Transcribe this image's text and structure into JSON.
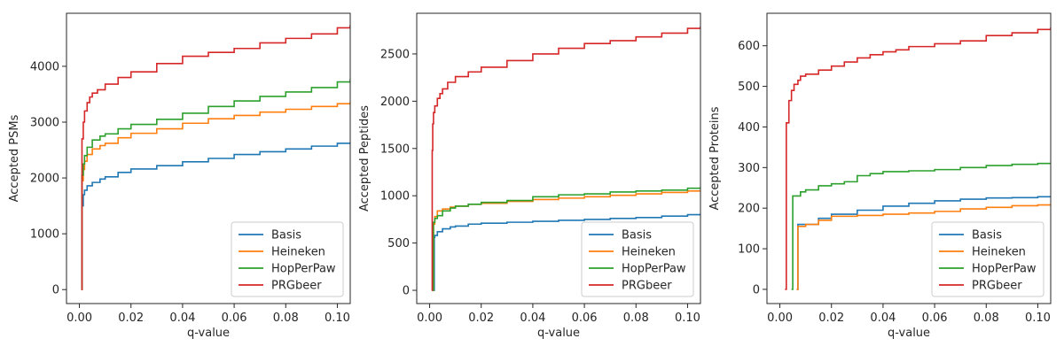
{
  "chart_data": [
    {
      "type": "line",
      "xlabel": "q-value",
      "ylabel": "Accepted PSMs",
      "xlim": [
        -0.005,
        0.105
      ],
      "ylim": [
        -250,
        4950
      ],
      "x_ticks": [
        0.0,
        0.02,
        0.04,
        0.06,
        0.08,
        0.1
      ],
      "x_tick_labels": [
        "0.00",
        "0.02",
        "0.04",
        "0.06",
        "0.08",
        "0.10"
      ],
      "y_ticks": [
        0,
        1000,
        2000,
        3000,
        4000
      ],
      "y_tick_labels": [
        "0",
        "1000",
        "2000",
        "3000",
        "4000"
      ],
      "legend_position": "lower-right",
      "series": [
        {
          "name": "Basis",
          "color": "#1f77b4",
          "x": [
            0.0008,
            0.001,
            0.0015,
            0.002,
            0.003,
            0.005,
            0.008,
            0.01,
            0.015,
            0.02,
            0.03,
            0.04,
            0.05,
            0.06,
            0.07,
            0.08,
            0.09,
            0.1,
            0.105
          ],
          "y": [
            0,
            1500,
            1700,
            1780,
            1860,
            1920,
            1980,
            2020,
            2100,
            2160,
            2220,
            2290,
            2350,
            2420,
            2470,
            2520,
            2570,
            2620,
            2640
          ]
        },
        {
          "name": "Heineken",
          "color": "#ff7f0e",
          "x": [
            0.0008,
            0.001,
            0.0015,
            0.002,
            0.003,
            0.005,
            0.008,
            0.01,
            0.015,
            0.02,
            0.03,
            0.04,
            0.05,
            0.06,
            0.07,
            0.08,
            0.09,
            0.1,
            0.105
          ],
          "y": [
            0,
            1950,
            2150,
            2300,
            2420,
            2520,
            2580,
            2620,
            2720,
            2800,
            2880,
            2980,
            3060,
            3120,
            3180,
            3230,
            3280,
            3330,
            3360
          ]
        },
        {
          "name": "HopPerPaw",
          "color": "#2ca02c",
          "x": [
            0.0008,
            0.001,
            0.0015,
            0.002,
            0.003,
            0.005,
            0.008,
            0.01,
            0.015,
            0.02,
            0.03,
            0.04,
            0.05,
            0.06,
            0.07,
            0.08,
            0.09,
            0.1,
            0.105
          ],
          "y": [
            0,
            2050,
            2250,
            2400,
            2550,
            2680,
            2750,
            2790,
            2880,
            2960,
            3050,
            3160,
            3280,
            3380,
            3460,
            3540,
            3620,
            3720,
            3770
          ]
        },
        {
          "name": "PRGbeer",
          "color": "#d62728",
          "x": [
            0.0008,
            0.001,
            0.0015,
            0.002,
            0.003,
            0.004,
            0.005,
            0.007,
            0.01,
            0.015,
            0.02,
            0.03,
            0.04,
            0.05,
            0.06,
            0.07,
            0.08,
            0.09,
            0.1,
            0.105
          ],
          "y": [
            0,
            2700,
            3000,
            3200,
            3350,
            3450,
            3520,
            3580,
            3680,
            3800,
            3900,
            4050,
            4180,
            4250,
            4320,
            4420,
            4500,
            4580,
            4690,
            4740
          ]
        }
      ]
    },
    {
      "type": "line",
      "xlabel": "q-value",
      "ylabel": "Accepted Peptides",
      "xlim": [
        -0.005,
        0.105
      ],
      "ylim": [
        -140,
        2930
      ],
      "x_ticks": [
        0.0,
        0.02,
        0.04,
        0.06,
        0.08,
        0.1
      ],
      "x_tick_labels": [
        "0.00",
        "0.02",
        "0.04",
        "0.06",
        "0.08",
        "0.10"
      ],
      "y_ticks": [
        0,
        500,
        1000,
        1500,
        2000,
        2500
      ],
      "y_tick_labels": [
        "0",
        "500",
        "1000",
        "1500",
        "2000",
        "2500"
      ],
      "legend_position": "lower-right",
      "series": [
        {
          "name": "Basis",
          "color": "#1f77b4",
          "x": [
            0.0015,
            0.0018,
            0.002,
            0.003,
            0.005,
            0.008,
            0.01,
            0.015,
            0.02,
            0.03,
            0.04,
            0.05,
            0.06,
            0.07,
            0.08,
            0.09,
            0.1,
            0.105
          ],
          "y": [
            0,
            560,
            580,
            620,
            650,
            670,
            680,
            700,
            710,
            720,
            730,
            740,
            750,
            760,
            770,
            785,
            800,
            810
          ]
        },
        {
          "name": "Heineken",
          "color": "#ff7f0e",
          "x": [
            0.0012,
            0.0015,
            0.002,
            0.003,
            0.005,
            0.008,
            0.01,
            0.015,
            0.02,
            0.03,
            0.04,
            0.05,
            0.06,
            0.07,
            0.08,
            0.09,
            0.1,
            0.105
          ],
          "y": [
            0,
            700,
            780,
            840,
            860,
            880,
            890,
            910,
            920,
            940,
            960,
            975,
            990,
            1005,
            1020,
            1035,
            1050,
            1060
          ]
        },
        {
          "name": "HopPerPaw",
          "color": "#2ca02c",
          "x": [
            0.0012,
            0.0015,
            0.002,
            0.003,
            0.005,
            0.008,
            0.01,
            0.015,
            0.02,
            0.03,
            0.04,
            0.05,
            0.06,
            0.07,
            0.08,
            0.09,
            0.1,
            0.105
          ],
          "y": [
            0,
            720,
            760,
            790,
            840,
            870,
            890,
            910,
            930,
            950,
            990,
            1010,
            1020,
            1040,
            1050,
            1060,
            1080,
            1090
          ]
        },
        {
          "name": "PRGbeer",
          "color": "#d62728",
          "x": [
            0.0008,
            0.001,
            0.0012,
            0.0015,
            0.002,
            0.003,
            0.004,
            0.005,
            0.007,
            0.01,
            0.015,
            0.02,
            0.03,
            0.04,
            0.05,
            0.06,
            0.07,
            0.08,
            0.09,
            0.1,
            0.105
          ],
          "y": [
            0,
            1480,
            1760,
            1880,
            1950,
            2030,
            2080,
            2130,
            2200,
            2260,
            2310,
            2360,
            2430,
            2500,
            2560,
            2610,
            2640,
            2680,
            2720,
            2770,
            2790
          ]
        }
      ]
    },
    {
      "type": "line",
      "xlabel": "q-value",
      "ylabel": "Accepted Proteins",
      "xlim": [
        -0.005,
        0.105
      ],
      "ylim": [
        -35,
        680
      ],
      "x_ticks": [
        0.0,
        0.02,
        0.04,
        0.06,
        0.08,
        0.1
      ],
      "x_tick_labels": [
        "0.00",
        "0.02",
        "0.04",
        "0.06",
        "0.08",
        "0.10"
      ],
      "y_ticks": [
        0,
        100,
        200,
        300,
        400,
        500,
        600
      ],
      "y_tick_labels": [
        "0",
        "100",
        "200",
        "300",
        "400",
        "500",
        "600"
      ],
      "legend_position": "lower-right",
      "series": [
        {
          "name": "Basis",
          "color": "#1f77b4",
          "x": [
            0.0065,
            0.007,
            0.01,
            0.015,
            0.02,
            0.03,
            0.04,
            0.05,
            0.06,
            0.07,
            0.08,
            0.09,
            0.1,
            0.105
          ],
          "y": [
            0,
            160,
            160,
            175,
            185,
            195,
            205,
            212,
            218,
            222,
            225,
            226,
            228,
            228
          ]
        },
        {
          "name": "Heineken",
          "color": "#ff7f0e",
          "x": [
            0.0065,
            0.007,
            0.01,
            0.015,
            0.02,
            0.03,
            0.04,
            0.05,
            0.06,
            0.07,
            0.08,
            0.09,
            0.1,
            0.105
          ],
          "y": [
            0,
            155,
            160,
            170,
            180,
            182,
            185,
            188,
            192,
            198,
            202,
            206,
            208,
            210
          ]
        },
        {
          "name": "HopPerPaw",
          "color": "#2ca02c",
          "x": [
            0.0045,
            0.005,
            0.008,
            0.01,
            0.015,
            0.02,
            0.025,
            0.03,
            0.035,
            0.04,
            0.05,
            0.06,
            0.07,
            0.08,
            0.09,
            0.1,
            0.105
          ],
          "y": [
            0,
            230,
            240,
            245,
            255,
            260,
            265,
            280,
            285,
            290,
            292,
            295,
            300,
            305,
            308,
            310,
            312
          ]
        },
        {
          "name": "PRGbeer",
          "color": "#d62728",
          "x": [
            0.002,
            0.0025,
            0.0035,
            0.0045,
            0.0055,
            0.007,
            0.008,
            0.01,
            0.015,
            0.02,
            0.025,
            0.03,
            0.035,
            0.04,
            0.045,
            0.05,
            0.06,
            0.07,
            0.08,
            0.09,
            0.1,
            0.105
          ],
          "y": [
            0,
            410,
            465,
            490,
            505,
            515,
            525,
            530,
            540,
            550,
            560,
            570,
            578,
            585,
            590,
            598,
            605,
            612,
            625,
            632,
            640,
            645
          ]
        }
      ]
    }
  ]
}
